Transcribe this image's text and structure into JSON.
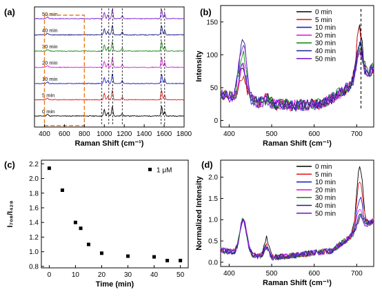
{
  "panels": {
    "a": {
      "label": "(a)"
    },
    "b": {
      "label": "(b)"
    },
    "c": {
      "label": "(c)"
    },
    "d": {
      "label": "(d)"
    }
  },
  "chart_data": [
    {
      "id": "a",
      "type": "line",
      "xlabel": "Raman Shift (cm⁻¹)",
      "ylabel": "",
      "xlim": [
        300,
        1800
      ],
      "xticks": [
        400,
        600,
        800,
        1000,
        1200,
        1400,
        1600,
        1800
      ],
      "dashed_lines_x": [
        975,
        1045,
        1085,
        1180,
        1570,
        1605
      ],
      "highlight_box_x": [
        400,
        800
      ],
      "series": [
        {
          "name": "0 min",
          "label": "0 min",
          "color": "#000000"
        },
        {
          "name": "5 min",
          "label": "5 min",
          "color": "#e8191f"
        },
        {
          "name": "10 min",
          "label": "10 min",
          "color": "#1f1fd6"
        },
        {
          "name": "20 min",
          "label": "20 min",
          "color": "#e11fe6"
        },
        {
          "name": "30 min",
          "label": "30 min",
          "color": "#1a8c1a"
        },
        {
          "name": "40 min",
          "label": "40 min",
          "color": "#1c1c8c"
        },
        {
          "name": "50 min",
          "label": "50 min",
          "color": "#7a1fd6"
        }
      ],
      "peaks": [
        {
          "x": 1000,
          "h": 1.0
        },
        {
          "x": 1035,
          "h": 0.55
        },
        {
          "x": 1080,
          "h": 1.5
        },
        {
          "x": 1180,
          "h": 0.45
        },
        {
          "x": 1575,
          "h": 1.5
        },
        {
          "x": 1605,
          "h": 0.75
        }
      ]
    },
    {
      "id": "b",
      "type": "line",
      "xlabel": "Raman Shift (cm⁻¹)",
      "ylabel": "Intensity",
      "xlim": [
        380,
        740
      ],
      "ylim": [
        -10,
        175
      ],
      "xticks": [
        400,
        500,
        600,
        700
      ],
      "yticks": [
        0,
        50,
        100,
        150
      ],
      "dashed_line_x": 710,
      "legend": "top-right",
      "series": [
        {
          "name": "0 min",
          "color": "#000000",
          "peak_432": 88,
          "peak_705": 158
        },
        {
          "name": "5 min",
          "color": "#e8191f",
          "peak_432": 78,
          "peak_705": 150
        },
        {
          "name": "10 min",
          "color": "#1f1fd6",
          "peak_432": 93,
          "peak_705": 135
        },
        {
          "name": "20 min",
          "color": "#e11fe6",
          "peak_432": 100,
          "peak_705": 118
        },
        {
          "name": "30 min",
          "color": "#1a8c1a",
          "peak_432": 120,
          "peak_705": 122
        },
        {
          "name": "40 min",
          "color": "#1c1c8c",
          "peak_432": 135,
          "peak_705": 128
        },
        {
          "name": "50 min",
          "color": "#7a1fd6",
          "peak_432": 130,
          "peak_705": 112
        }
      ]
    },
    {
      "id": "c",
      "type": "scatter",
      "xlabel": "Time (min)",
      "ylabel": "I₇₀₈/I₄₂₈",
      "xlim": [
        -3,
        53
      ],
      "ylim": [
        0.78,
        2.25
      ],
      "xticks": [
        0,
        10,
        20,
        30,
        40,
        50
      ],
      "yticks": [
        0.8,
        1.0,
        1.2,
        1.4,
        1.6,
        1.8,
        2.0,
        2.2
      ],
      "legend": "top-right",
      "series": [
        {
          "name": "1 μM",
          "x": [
            0,
            5,
            10,
            12,
            15,
            20,
            30,
            40,
            45,
            50
          ],
          "y": [
            2.14,
            1.84,
            1.4,
            1.32,
            1.1,
            0.98,
            0.94,
            0.93,
            0.88,
            0.88
          ]
        }
      ]
    },
    {
      "id": "d",
      "type": "line",
      "xlabel": "Raman Shift (cm⁻¹)",
      "ylabel": "Normalized Intensity",
      "xlim": [
        380,
        740
      ],
      "ylim": [
        -0.1,
        2.4
      ],
      "xticks": [
        400,
        500,
        600,
        700
      ],
      "yticks": [
        0.0,
        0.5,
        1.0,
        1.5,
        2.0
      ],
      "legend": "top-right",
      "series": [
        {
          "name": "0 min",
          "color": "#000000",
          "peak_705": 2.1
        },
        {
          "name": "5 min",
          "color": "#e8191f",
          "peak_705": 1.72
        },
        {
          "name": "10 min",
          "color": "#1f1fd6",
          "peak_705": 1.3
        },
        {
          "name": "20 min",
          "color": "#e11fe6",
          "peak_705": 1.05
        },
        {
          "name": "30 min",
          "color": "#1a8c1a",
          "peak_705": 0.88
        },
        {
          "name": "40 min",
          "color": "#1c1c8c",
          "peak_705": 0.92
        },
        {
          "name": "50 min",
          "color": "#7a1fd6",
          "peak_705": 0.82
        }
      ]
    }
  ]
}
